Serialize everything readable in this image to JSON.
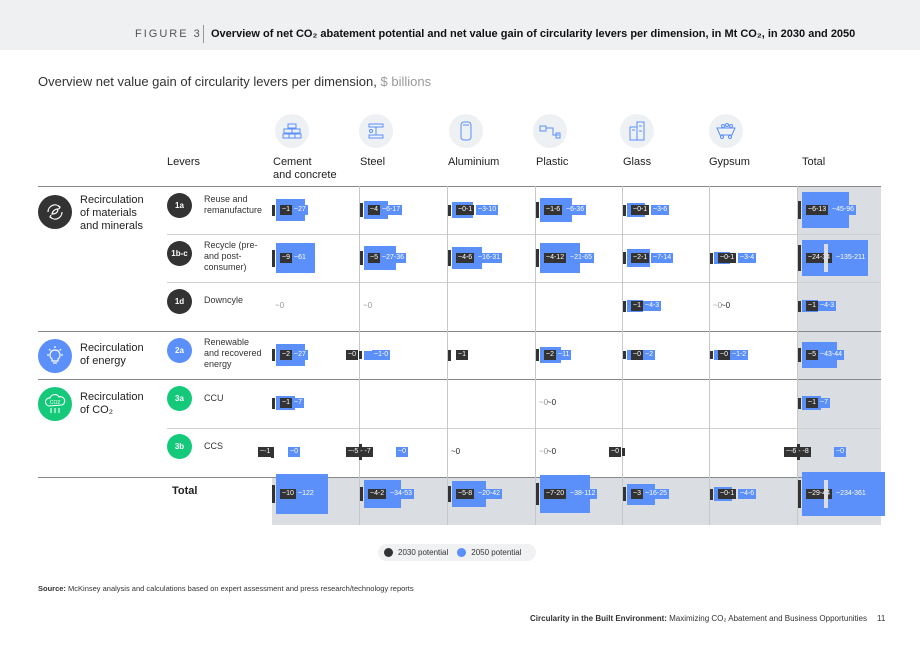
{
  "header": {
    "figure_label": "FIGURE 3",
    "title": "Overview of net CO₂ abatement potential and net value gain of circularity levers per dimension, in Mt CO₂, in 2030 and 2050"
  },
  "subtitle": {
    "text": "Overview net value gain of circularity levers per dimension,",
    "unit": "$ billions"
  },
  "columns": {
    "levers_label": "Levers",
    "items": [
      "Cement and concrete",
      "Steel",
      "Aluminium",
      "Plastic",
      "Glass",
      "Gypsum",
      "Total"
    ],
    "cement_line1": "Cement",
    "cement_line2": "and concrete",
    "steel": "Steel",
    "aluminium": "Aluminium",
    "plastic": "Plastic",
    "glass": "Glass",
    "gypsum": "Gypsum",
    "total": "Total"
  },
  "column_icons": [
    "bricks-icon",
    "steel-beam-icon",
    "aluminium-can-icon",
    "plastic-pipe-icon",
    "glass-building-icon",
    "gypsum-cart-icon"
  ],
  "dimensions": [
    {
      "line1": "Recirculation",
      "line2": "of materials",
      "line3": "and minerals",
      "color": "#333333",
      "icon": "recycle-leaf-icon"
    },
    {
      "line1": "Recirculation",
      "line2": "of energy",
      "line3": "",
      "color": "#5b8ff9",
      "icon": "lightbulb-icon"
    },
    {
      "line1": "Recirculation",
      "line2": "of CO₂",
      "line3": "",
      "color": "#14c97a",
      "icon": "co2-cloud-icon"
    }
  ],
  "levers": [
    {
      "badge": "1a",
      "line1": "Reuse and",
      "line2": "remanufacture",
      "line3": "",
      "color": "#333333"
    },
    {
      "badge": "1b-c",
      "line1": "Recycle (pre-",
      "line2": "and post-",
      "line3": "consumer)",
      "color": "#333333"
    },
    {
      "badge": "1d",
      "line1": "Downcyle",
      "line2": "",
      "line3": "",
      "color": "#333333"
    },
    {
      "badge": "2a",
      "line1": "Renewable",
      "line2": "and recovered",
      "line3": "energy",
      "color": "#5b8ff9"
    },
    {
      "badge": "3a",
      "line1": "CCU",
      "line2": "",
      "line3": "",
      "color": "#14c97a"
    },
    {
      "badge": "3b",
      "line1": "CCS",
      "line2": "",
      "line3": "",
      "color": "#14c97a"
    }
  ],
  "total_row_label": "Total",
  "legend": {
    "p2030": "2030 potential",
    "p2050": "2050 potential"
  },
  "colors": {
    "p2030": "#333333",
    "p2050": "#5b8ff9",
    "total_bg": "#dadde1",
    "label_bg": "#5b8ff9"
  },
  "chart_data": {
    "type": "table",
    "unit": "$ billions",
    "rows": [
      "1a",
      "1b-c",
      "1d",
      "2a",
      "3a",
      "3b",
      "Total"
    ],
    "columns": [
      "Cement and concrete",
      "Steel",
      "Aluminium",
      "Plastic",
      "Glass",
      "Gypsum",
      "Total"
    ],
    "cells": [
      [
        {
          "p2030": "~1",
          "p2050": "~27",
          "v30": 1,
          "v50": 27
        },
        {
          "p2030": "~4",
          "p2050": "~6-17",
          "v30": 4,
          "v50": 17
        },
        {
          "p2030": "~0-1",
          "p2050": "~3-10",
          "v30": 1,
          "v50": 10
        },
        {
          "p2030": "~1-6",
          "p2050": "~6-36",
          "v30": 6,
          "v50": 36
        },
        {
          "p2030": "~0-1",
          "p2050": "~3-6",
          "v30": 1,
          "v50": 6
        },
        {
          "empty": true
        },
        {
          "p2030": "~6-13",
          "p2050": "~45-96",
          "v30": 13,
          "v50": 96
        }
      ],
      [
        {
          "p2030": "~9",
          "p2050": "~61",
          "v30": 9,
          "v50": 61
        },
        {
          "p2030": "~5",
          "p2050": "~27-36",
          "v30": 5,
          "v50": 36
        },
        {
          "p2030": "~4-6",
          "p2050": "~16-31",
          "v30": 6,
          "v50": 31
        },
        {
          "p2030": "~4-12",
          "p2050": "~21-65",
          "v30": 12,
          "v50": 65
        },
        {
          "p2030": "~2-1",
          "p2050": "~7-14",
          "v30": 2,
          "v50": 14
        },
        {
          "p2030": "~0-1",
          "p2050": "~3-4",
          "v30": 1,
          "v50": 4
        },
        {
          "p2030": "~24-34",
          "p2050": "~135-211",
          "v30": 34,
          "v50": 211,
          "broken": true
        }
      ],
      [
        {
          "zero": "~0"
        },
        {
          "zero": "~0"
        },
        {
          "empty": true
        },
        {
          "empty": true
        },
        {
          "p2030": "~1",
          "p2050": "~4-3",
          "v30": 1,
          "v50": 4
        },
        {
          "zero": "~0",
          "zero_dark": "~0"
        },
        {
          "p2030": "~1",
          "p2050": "~4-3",
          "v30": 1,
          "v50": 4
        }
      ],
      [
        {
          "p2030": "~2",
          "p2050": "~27",
          "v30": 2,
          "v50": 27
        },
        {
          "p2030": "~0",
          "p2050": "~1-0",
          "v30": 0,
          "v50": 1,
          "neg": true
        },
        {
          "p2030": "~1",
          "p2050": "",
          "v30": 1,
          "v50": 0
        },
        {
          "p2030": "~2",
          "p2050": "~11",
          "v30": 2,
          "v50": 11
        },
        {
          "p2030": "~0",
          "p2050": "~2",
          "v30": 0,
          "v50": 2
        },
        {
          "p2030": "~0",
          "p2050": "~1-2",
          "v30": 0,
          "v50": 2
        },
        {
          "p2030": "~5",
          "p2050": "~43-44",
          "v30": 5,
          "v50": 44
        }
      ],
      [
        {
          "p2030": "~1",
          "p2050": "~7",
          "v30": 1,
          "v50": 7
        },
        {
          "empty": true
        },
        {
          "empty": true
        },
        {
          "zero": "~0",
          "zero_dark": "~0"
        },
        {
          "empty": true
        },
        {
          "empty": true
        },
        {
          "p2030": "~1",
          "p2050": "~7",
          "v30": 1,
          "v50": 7
        }
      ],
      [
        {
          "p2030": "~-1",
          "p2050": "~0",
          "v30": -1,
          "v50": 0,
          "neg": true
        },
        {
          "p2030": "~-5 - -7",
          "p2050": "~0",
          "v30": -7,
          "v50": 0,
          "neg": true
        },
        {
          "zero_dark": "~0"
        },
        {
          "zero": "~0",
          "zero_dark": "~0"
        },
        {
          "p2030": "~0",
          "zero_dark": "~0",
          "neg": true
        },
        {
          "empty": true
        },
        {
          "p2030": "~-6 - -8",
          "p2050": "~0",
          "v30": -8,
          "v50": 0,
          "neg": true
        }
      ],
      [
        {
          "p2030": "~10",
          "p2050": "~122",
          "v30": 10,
          "v50": 122
        },
        {
          "p2030": "~4-2",
          "p2050": "~34-53",
          "v30": 4,
          "v50": 53
        },
        {
          "p2030": "~5-8",
          "p2050": "~20-42",
          "v30": 8,
          "v50": 42
        },
        {
          "p2030": "~7-20",
          "p2050": "~38-112",
          "v30": 20,
          "v50": 112
        },
        {
          "p2030": "~3",
          "p2050": "~16-25",
          "v30": 3,
          "v50": 25
        },
        {
          "p2030": "~0-1",
          "p2050": "~4-6",
          "v30": 1,
          "v50": 6
        },
        {
          "p2030": "~29-44",
          "p2050": "~234-361",
          "v30": 44,
          "v50": 361,
          "broken": true
        }
      ]
    ]
  },
  "source": {
    "label": "Source:",
    "text": "McKinsey analysis and calculations based on expert assessment and press research/technology reports"
  },
  "footer": {
    "bold": "Circularity in the Built Environment:",
    "text": "Maximizing CO₂ Abatement and Business Opportunities",
    "page": "11"
  }
}
